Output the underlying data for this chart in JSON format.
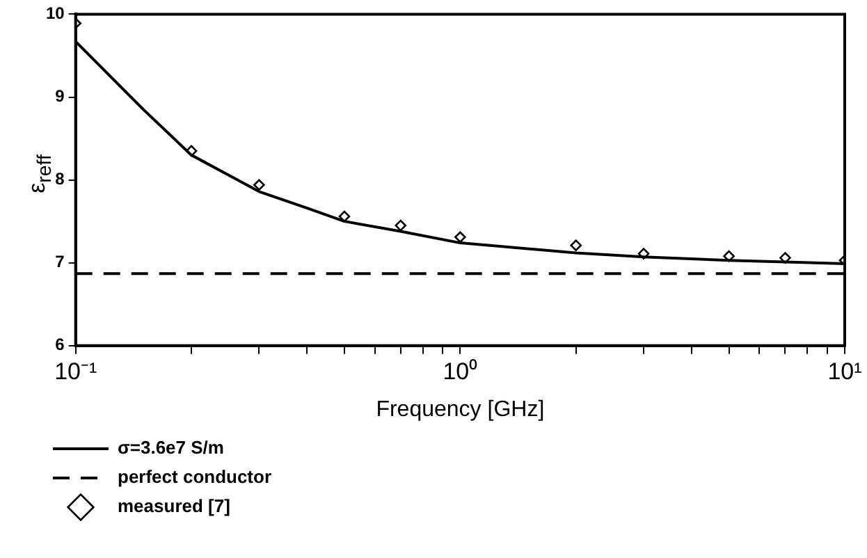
{
  "chart_data": {
    "type": "line",
    "xlabel": "Frequency [GHz]",
    "ylabel": "ε$_{reff}$",
    "log": "x",
    "grid": false,
    "legend": "bottom left",
    "xlim": [
      0.1,
      10
    ],
    "ylim": [
      6,
      10
    ],
    "xticks": [
      {
        "value": 0.1,
        "label": "10⁻¹"
      },
      {
        "value": 0.2,
        "label": null
      },
      {
        "value": 0.3,
        "label": null
      },
      {
        "value": 0.4,
        "label": null
      },
      {
        "value": 0.5,
        "label": null
      },
      {
        "value": 0.6,
        "label": null
      },
      {
        "value": 0.7,
        "label": null
      },
      {
        "value": 0.8,
        "label": null
      },
      {
        "value": 0.9,
        "label": null
      },
      {
        "value": 1,
        "label": "10⁰"
      },
      {
        "value": 2,
        "label": null
      },
      {
        "value": 3,
        "label": null
      },
      {
        "value": 4,
        "label": null
      },
      {
        "value": 5,
        "label": null
      },
      {
        "value": 6,
        "label": null
      },
      {
        "value": 7,
        "label": null
      },
      {
        "value": 8,
        "label": null
      },
      {
        "value": 9,
        "label": null
      },
      {
        "value": 10,
        "label": "10¹"
      }
    ],
    "yticks": [
      6,
      7,
      8,
      9,
      10
    ],
    "series": [
      {
        "name": "σ=3.6e7 S/m",
        "type": "line",
        "color": "#000000",
        "marker": "none",
        "line_style": "solid",
        "x": [
          0.1,
          0.15,
          0.2,
          0.3,
          0.4,
          0.5,
          0.7,
          1,
          2,
          3,
          5,
          7,
          10
        ],
        "values": [
          9.67,
          8.85,
          8.3,
          7.86,
          7.66,
          7.5,
          7.38,
          7.24,
          7.12,
          7.07,
          7.03,
          7.01,
          6.99
        ]
      },
      {
        "name": "perfect conductor",
        "type": "line",
        "color": "#000000",
        "marker": "none",
        "line_style": "dashed",
        "x": [
          0.1,
          10
        ],
        "values": [
          6.87,
          6.87
        ]
      },
      {
        "name": "measured [7]",
        "type": "scatter",
        "color": "#000000",
        "marker": "diamond",
        "x": [
          0.1,
          0.2,
          0.3,
          0.5,
          0.7,
          1,
          2,
          3,
          5,
          7,
          10
        ],
        "values": [
          9.89,
          8.35,
          7.94,
          7.56,
          7.45,
          7.31,
          7.21,
          7.11,
          7.08,
          7.06,
          7.03
        ]
      }
    ]
  }
}
